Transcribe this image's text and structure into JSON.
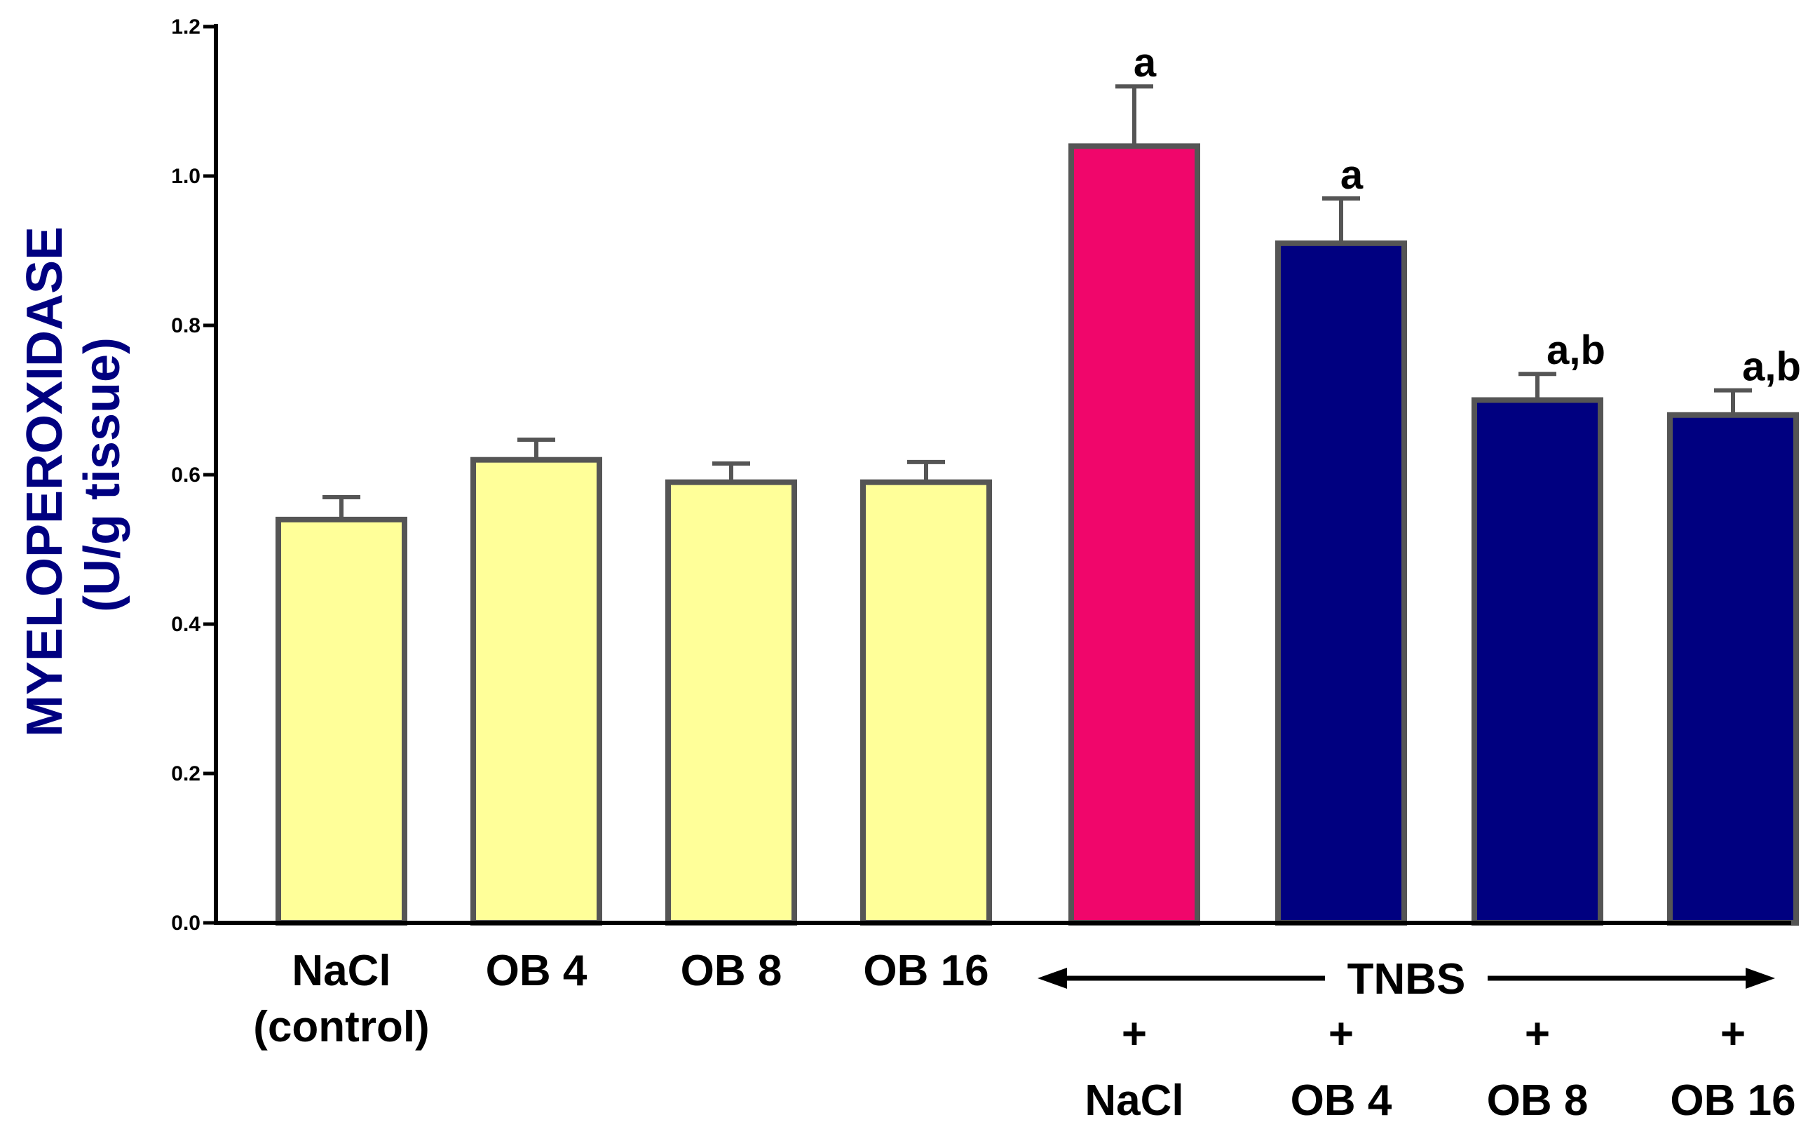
{
  "chart_data": {
    "type": "bar",
    "ylabel_line1": "MYELOPEROXIDASE",
    "ylabel_line2": "(U/g tissue)",
    "ylabel_color": "#000080",
    "ylim": [
      0,
      1.2
    ],
    "yticks": [
      "0.0",
      "0.2",
      "0.4",
      "0.6",
      "0.8",
      "1.0",
      "1.2"
    ],
    "grid": false,
    "categories": [
      {
        "line1": "NaCl",
        "line2": "(control)"
      },
      {
        "line1": "OB 4",
        "line2": ""
      },
      {
        "line1": "OB 8",
        "line2": ""
      },
      {
        "line1": "OB 16",
        "line2": ""
      },
      {
        "line1": "+",
        "line2": "NaCl"
      },
      {
        "line1": "+",
        "line2": "OB 4"
      },
      {
        "line1": "+",
        "line2": "OB 8"
      },
      {
        "line1": "+",
        "line2": "OB 16"
      }
    ],
    "values": [
      0.54,
      0.62,
      0.59,
      0.59,
      1.04,
      0.91,
      0.7,
      0.68
    ],
    "errors": [
      0.03,
      0.027,
      0.025,
      0.027,
      0.08,
      0.06,
      0.035,
      0.033
    ],
    "significance": [
      "",
      "",
      "",
      "",
      "a",
      "a",
      "a,b",
      "a,b"
    ],
    "bar_colors": [
      "#ffff99",
      "#ffff99",
      "#ffff99",
      "#ffff99",
      "#f0066b",
      "#000080",
      "#000080",
      "#000080"
    ],
    "bar_edge_color": "#555555",
    "group_label": "TNBS"
  }
}
